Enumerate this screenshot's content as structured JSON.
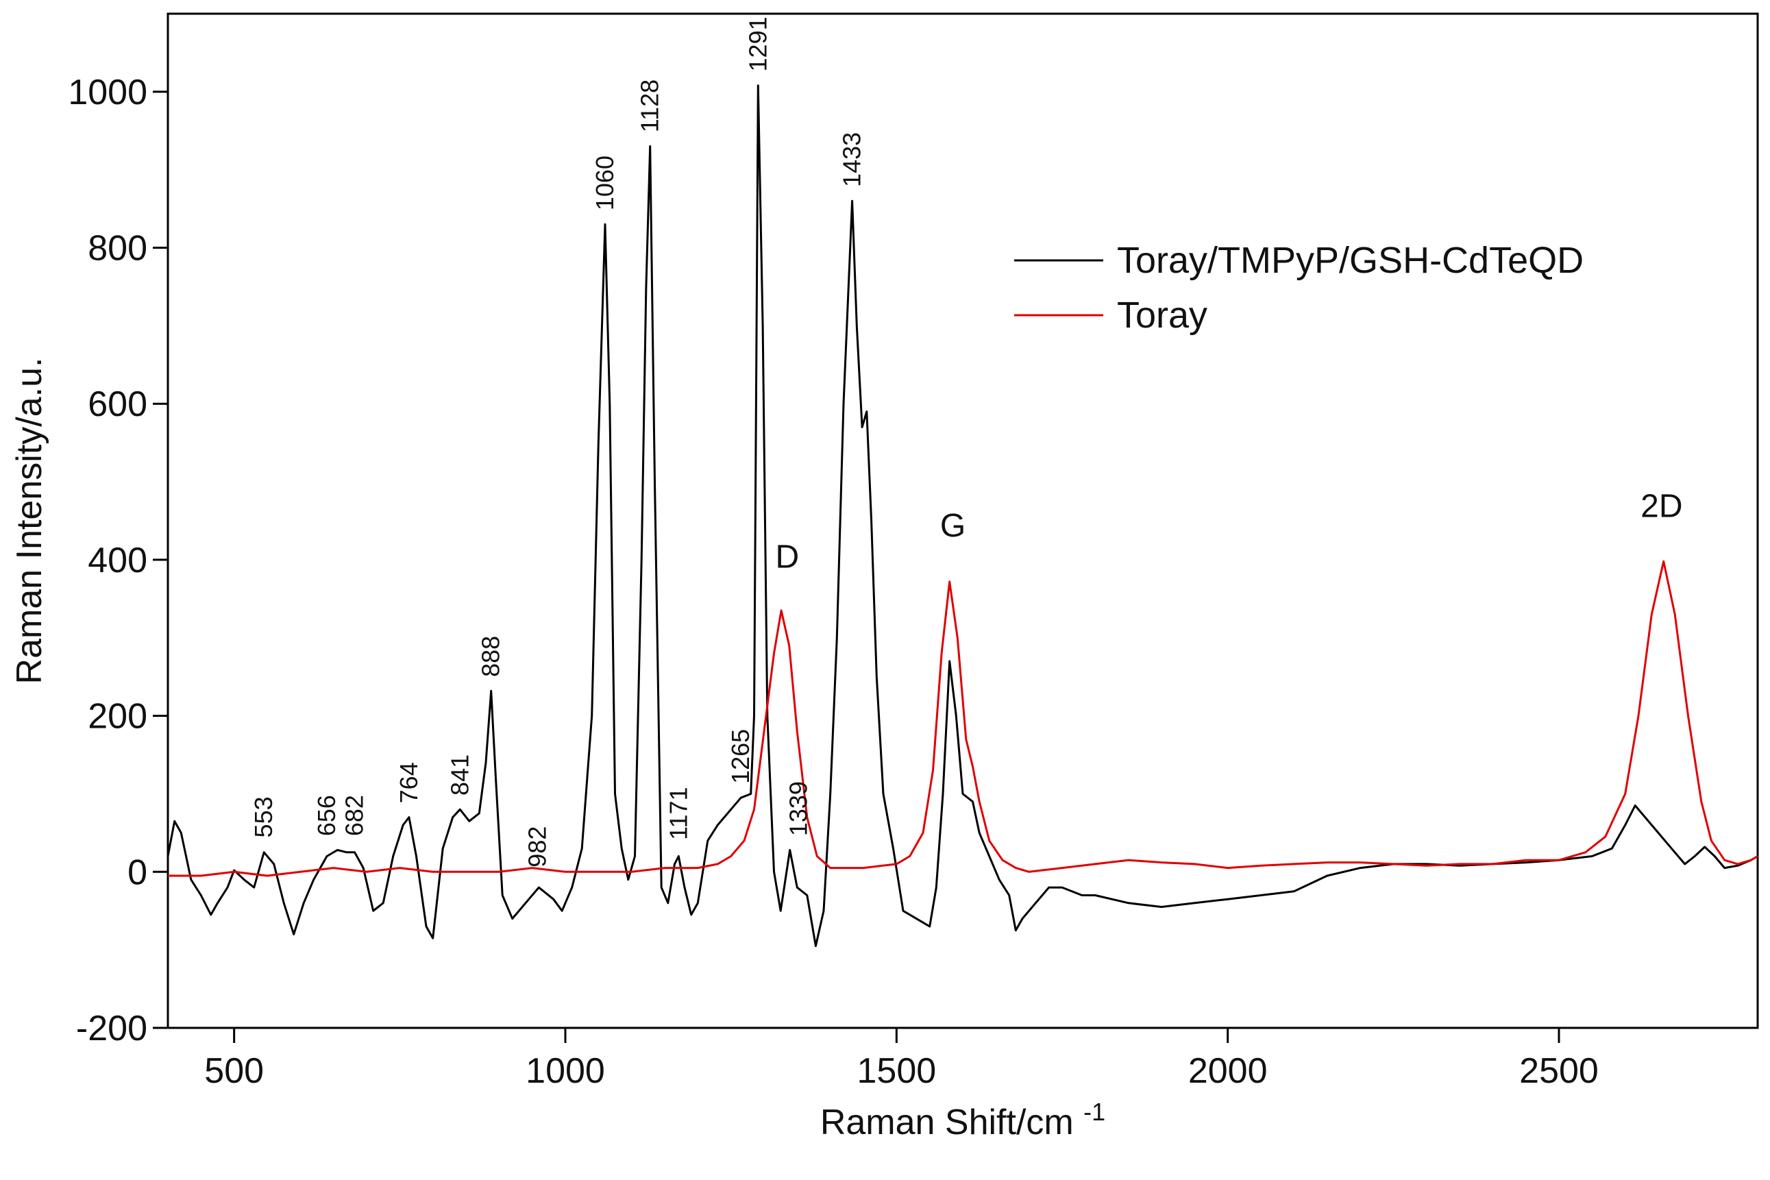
{
  "chart_data": {
    "type": "line",
    "title": "",
    "xlabel": "Raman Shift/cm",
    "xlabel_superscript": "-1",
    "ylabel": "Raman Intensity/a.u.",
    "xlim": [
      400,
      2800
    ],
    "ylim": [
      -200,
      1100
    ],
    "x_ticks": [
      500,
      1000,
      1500,
      2000,
      2500
    ],
    "y_ticks": [
      -200,
      0,
      200,
      400,
      600,
      800,
      1000
    ],
    "grid": false,
    "legend_position": "top-right",
    "series": [
      {
        "name": "Toray/TMPyP/GSH-CdTeQD",
        "color": "#000000",
        "points": [
          [
            400,
            20
          ],
          [
            410,
            65
          ],
          [
            420,
            50
          ],
          [
            435,
            -10
          ],
          [
            450,
            -30
          ],
          [
            465,
            -55
          ],
          [
            475,
            -40
          ],
          [
            490,
            -20
          ],
          [
            500,
            2
          ],
          [
            515,
            -10
          ],
          [
            530,
            -20
          ],
          [
            545,
            25
          ],
          [
            560,
            10
          ],
          [
            575,
            -40
          ],
          [
            590,
            -80
          ],
          [
            605,
            -40
          ],
          [
            620,
            -10
          ],
          [
            640,
            20
          ],
          [
            656,
            28
          ],
          [
            670,
            25
          ],
          [
            682,
            25
          ],
          [
            695,
            5
          ],
          [
            710,
            -50
          ],
          [
            725,
            -40
          ],
          [
            740,
            20
          ],
          [
            755,
            60
          ],
          [
            764,
            70
          ],
          [
            775,
            20
          ],
          [
            790,
            -70
          ],
          [
            800,
            -85
          ],
          [
            815,
            30
          ],
          [
            830,
            70
          ],
          [
            841,
            80
          ],
          [
            855,
            65
          ],
          [
            870,
            75
          ],
          [
            880,
            140
          ],
          [
            888,
            232
          ],
          [
            895,
            120
          ],
          [
            905,
            -30
          ],
          [
            920,
            -60
          ],
          [
            940,
            -40
          ],
          [
            960,
            -20
          ],
          [
            982,
            -35
          ],
          [
            995,
            -50
          ],
          [
            1010,
            -20
          ],
          [
            1025,
            30
          ],
          [
            1040,
            200
          ],
          [
            1050,
            550
          ],
          [
            1060,
            830
          ],
          [
            1067,
            600
          ],
          [
            1075,
            100
          ],
          [
            1085,
            30
          ],
          [
            1095,
            -10
          ],
          [
            1105,
            20
          ],
          [
            1115,
            400
          ],
          [
            1122,
            750
          ],
          [
            1128,
            930
          ],
          [
            1135,
            500
          ],
          [
            1145,
            -20
          ],
          [
            1155,
            -40
          ],
          [
            1165,
            10
          ],
          [
            1171,
            20
          ],
          [
            1180,
            -20
          ],
          [
            1190,
            -55
          ],
          [
            1200,
            -40
          ],
          [
            1215,
            40
          ],
          [
            1230,
            60
          ],
          [
            1250,
            80
          ],
          [
            1265,
            95
          ],
          [
            1280,
            100
          ],
          [
            1285,
            200
          ],
          [
            1291,
            1008
          ],
          [
            1298,
            700
          ],
          [
            1305,
            200
          ],
          [
            1315,
            0
          ],
          [
            1325,
            -50
          ],
          [
            1339,
            28
          ],
          [
            1350,
            -20
          ],
          [
            1365,
            -30
          ],
          [
            1378,
            -95
          ],
          [
            1390,
            -50
          ],
          [
            1400,
            100
          ],
          [
            1410,
            300
          ],
          [
            1420,
            600
          ],
          [
            1433,
            860
          ],
          [
            1440,
            700
          ],
          [
            1448,
            570
          ],
          [
            1455,
            590
          ],
          [
            1462,
            450
          ],
          [
            1470,
            250
          ],
          [
            1480,
            100
          ],
          [
            1495,
            30
          ],
          [
            1510,
            -50
          ],
          [
            1530,
            -60
          ],
          [
            1550,
            -70
          ],
          [
            1560,
            -20
          ],
          [
            1570,
            100
          ],
          [
            1580,
            270
          ],
          [
            1590,
            200
          ],
          [
            1600,
            100
          ],
          [
            1615,
            90
          ],
          [
            1625,
            50
          ],
          [
            1640,
            20
          ],
          [
            1655,
            -10
          ],
          [
            1670,
            -30
          ],
          [
            1680,
            -75
          ],
          [
            1690,
            -60
          ],
          [
            1710,
            -40
          ],
          [
            1730,
            -20
          ],
          [
            1750,
            -20
          ],
          [
            1780,
            -30
          ],
          [
            1800,
            -30
          ],
          [
            1850,
            -40
          ],
          [
            1900,
            -45
          ],
          [
            1950,
            -40
          ],
          [
            2000,
            -35
          ],
          [
            2050,
            -30
          ],
          [
            2100,
            -25
          ],
          [
            2150,
            -5
          ],
          [
            2200,
            5
          ],
          [
            2250,
            10
          ],
          [
            2300,
            10
          ],
          [
            2350,
            8
          ],
          [
            2400,
            10
          ],
          [
            2450,
            12
          ],
          [
            2500,
            15
          ],
          [
            2550,
            20
          ],
          [
            2580,
            30
          ],
          [
            2600,
            60
          ],
          [
            2615,
            85
          ],
          [
            2630,
            70
          ],
          [
            2650,
            50
          ],
          [
            2670,
            30
          ],
          [
            2690,
            10
          ],
          [
            2705,
            20
          ],
          [
            2720,
            32
          ],
          [
            2735,
            20
          ],
          [
            2750,
            5
          ],
          [
            2770,
            8
          ],
          [
            2790,
            15
          ],
          [
            2800,
            20
          ]
        ]
      },
      {
        "name": "Toray",
        "color": "#e00000",
        "points": [
          [
            400,
            -5
          ],
          [
            450,
            -5
          ],
          [
            500,
            0
          ],
          [
            550,
            -5
          ],
          [
            600,
            0
          ],
          [
            650,
            5
          ],
          [
            700,
            0
          ],
          [
            750,
            5
          ],
          [
            800,
            0
          ],
          [
            850,
            0
          ],
          [
            900,
            0
          ],
          [
            950,
            5
          ],
          [
            1000,
            0
          ],
          [
            1050,
            0
          ],
          [
            1100,
            0
          ],
          [
            1150,
            5
          ],
          [
            1200,
            5
          ],
          [
            1230,
            10
          ],
          [
            1250,
            20
          ],
          [
            1270,
            40
          ],
          [
            1285,
            80
          ],
          [
            1300,
            180
          ],
          [
            1315,
            280
          ],
          [
            1326,
            335
          ],
          [
            1338,
            290
          ],
          [
            1350,
            180
          ],
          [
            1365,
            70
          ],
          [
            1380,
            20
          ],
          [
            1400,
            5
          ],
          [
            1450,
            5
          ],
          [
            1500,
            10
          ],
          [
            1520,
            20
          ],
          [
            1540,
            50
          ],
          [
            1555,
            130
          ],
          [
            1568,
            280
          ],
          [
            1580,
            372
          ],
          [
            1592,
            300
          ],
          [
            1605,
            170
          ],
          [
            1615,
            135
          ],
          [
            1625,
            90
          ],
          [
            1640,
            40
          ],
          [
            1660,
            15
          ],
          [
            1680,
            5
          ],
          [
            1700,
            0
          ],
          [
            1750,
            5
          ],
          [
            1800,
            10
          ],
          [
            1850,
            15
          ],
          [
            1900,
            12
          ],
          [
            1950,
            10
          ],
          [
            2000,
            5
          ],
          [
            2050,
            8
          ],
          [
            2100,
            10
          ],
          [
            2150,
            12
          ],
          [
            2200,
            12
          ],
          [
            2250,
            10
          ],
          [
            2300,
            8
          ],
          [
            2350,
            10
          ],
          [
            2400,
            10
          ],
          [
            2450,
            15
          ],
          [
            2500,
            15
          ],
          [
            2540,
            25
          ],
          [
            2570,
            45
          ],
          [
            2600,
            100
          ],
          [
            2620,
            200
          ],
          [
            2640,
            330
          ],
          [
            2658,
            398
          ],
          [
            2675,
            330
          ],
          [
            2695,
            200
          ],
          [
            2715,
            90
          ],
          [
            2730,
            40
          ],
          [
            2750,
            15
          ],
          [
            2770,
            10
          ],
          [
            2790,
            15
          ],
          [
            2800,
            20
          ]
        ]
      }
    ],
    "peak_annotations": [
      {
        "label": "553",
        "x": 545,
        "y": 28
      },
      {
        "label": "656",
        "x": 640,
        "y": 30
      },
      {
        "label": "682",
        "x": 682,
        "y": 30
      },
      {
        "label": "764",
        "x": 764,
        "y": 72
      },
      {
        "label": "841",
        "x": 841,
        "y": 82
      },
      {
        "label": "888",
        "x": 888,
        "y": 234
      },
      {
        "label": "982",
        "x": 958,
        "y": -10
      },
      {
        "label": "1060",
        "x": 1060,
        "y": 832
      },
      {
        "label": "1128",
        "x": 1128,
        "y": 932
      },
      {
        "label": "1171",
        "x": 1171,
        "y": 25
      },
      {
        "label": "1265",
        "x": 1265,
        "y": 97
      },
      {
        "label": "1291",
        "x": 1291,
        "y": 1010
      },
      {
        "label": "1339",
        "x": 1352,
        "y": 30
      },
      {
        "label": "1433",
        "x": 1433,
        "y": 862
      }
    ],
    "band_annotations": [
      {
        "label": "D",
        "x": 1335,
        "y": 390
      },
      {
        "label": "G",
        "x": 1585,
        "y": 430
      },
      {
        "label": "2D",
        "x": 2655,
        "y": 455
      }
    ]
  }
}
